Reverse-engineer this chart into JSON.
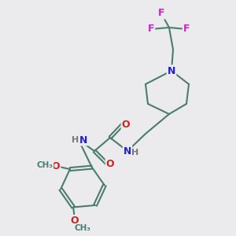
{
  "bg_color": "#ebebed",
  "atom_colors": {
    "C": "#4a7c6f",
    "N": "#2222cc",
    "O": "#cc2222",
    "F": "#cc22cc",
    "H": "#777777"
  },
  "bond_color": "#4a7c6f",
  "figsize": [
    3.0,
    3.0
  ],
  "dpi": 100
}
